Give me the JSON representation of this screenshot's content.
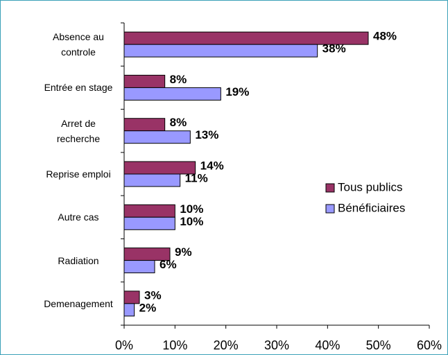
{
  "chart_data": {
    "type": "bar",
    "orientation": "horizontal",
    "categories": [
      "Absence au controle",
      "Entrée en stage",
      "Arret de recherche",
      "Reprise emploi",
      "Autre cas",
      "Radiation",
      "Demenagement"
    ],
    "series": [
      {
        "name": "Tous publics",
        "color": "#993366",
        "values": [
          48,
          8,
          8,
          14,
          10,
          9,
          3
        ],
        "value_labels": [
          "48%",
          "8%",
          "8%",
          "14%",
          "10%",
          "9%",
          "3%"
        ]
      },
      {
        "name": "Bénéficiaires",
        "color": "#9999ff",
        "values": [
          38,
          19,
          13,
          11,
          10,
          6,
          2
        ],
        "value_labels": [
          "38%",
          "19%",
          "13%",
          "11%",
          "10%",
          "6%",
          "2%"
        ]
      }
    ],
    "xlim": [
      0,
      60
    ],
    "xticks": [
      {
        "value": 0,
        "label": "0%"
      },
      {
        "value": 10,
        "label": "10%"
      },
      {
        "value": 20,
        "label": "20%"
      },
      {
        "value": 30,
        "label": "30%"
      },
      {
        "value": 40,
        "label": "40%"
      },
      {
        "value": 50,
        "label": "50%"
      },
      {
        "value": 60,
        "label": "60%"
      }
    ],
    "legend": "right",
    "grid": false
  }
}
